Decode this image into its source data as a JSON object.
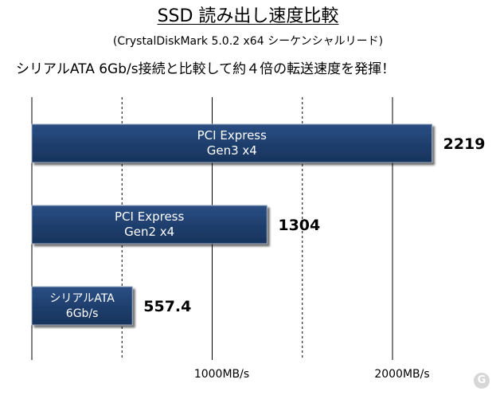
{
  "title": "SSD 読み出し速度比較",
  "subtitle": "(CrystalDiskMark 5.0.2 x64 シーケンシャルリード)",
  "headline": "シリアルATA 6Gb/s接続と比較して約４倍の転送速度を発揮！",
  "logo_icon": "site-logo-icon",
  "colors": {
    "bar_fill": "#1f3f6e",
    "bar_edge": "#9aa8c0",
    "grid": "#000000"
  },
  "chart_data": {
    "type": "bar",
    "orientation": "horizontal",
    "categories": [
      [
        "PCI Express",
        "Gen3 x4"
      ],
      [
        "PCI Express",
        "Gen2 x4"
      ],
      [
        "シリアルATA",
        "6Gb/s"
      ]
    ],
    "values": [
      2219,
      1304,
      557.4
    ],
    "value_labels": [
      "2219",
      "1304",
      "557.4"
    ],
    "xlim": [
      0,
      2200
    ],
    "xticks": [
      1000,
      2000
    ],
    "xtick_labels": [
      "1000MB/s",
      "2000MB/s"
    ],
    "grid": "vertical dashed at 500MB/s intervals, solid at 1000MB/s intervals",
    "unit": "MB/s"
  }
}
